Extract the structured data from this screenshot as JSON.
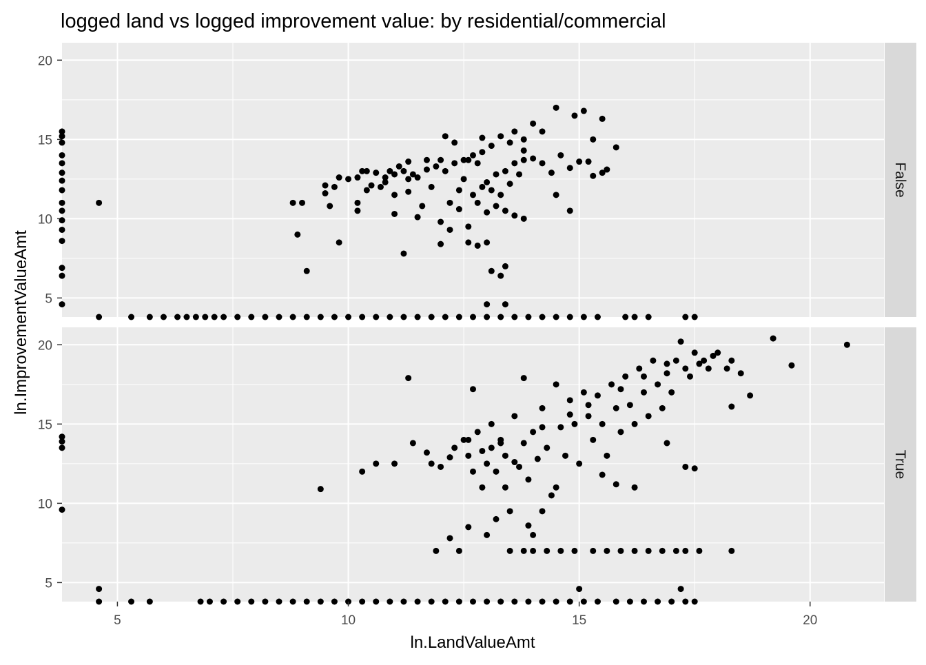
{
  "chart_data": {
    "type": "scatter",
    "title": "logged land vs logged improvement value: by residential/commercial",
    "xlabel": "ln.LandValueAmt",
    "ylabel": "ln.ImprovementValueAmt",
    "xlim": [
      3.8,
      21.6
    ],
    "ylim": [
      3.8,
      21.1
    ],
    "x_ticks": [
      5,
      10,
      15,
      20
    ],
    "y_ticks": [
      5,
      10,
      15,
      20
    ],
    "grid": true,
    "facet_by": "row",
    "point_color": "#000000",
    "panel_background": "#EBEBEB",
    "strip_background": "#D9D9D9",
    "panels": [
      {
        "strip_label": "False",
        "points": [
          [
            4.6,
            11.0
          ],
          [
            8.8,
            11.0
          ],
          [
            9.0,
            11.0
          ],
          [
            8.9,
            9.0
          ],
          [
            9.1,
            6.7
          ],
          [
            9.8,
            8.5
          ],
          [
            9.6,
            10.8
          ],
          [
            9.5,
            12.1
          ],
          [
            9.5,
            11.6
          ],
          [
            9.7,
            12.0
          ],
          [
            9.8,
            12.6
          ],
          [
            10.0,
            12.5
          ],
          [
            10.2,
            12.6
          ],
          [
            10.4,
            11.8
          ],
          [
            10.2,
            11.0
          ],
          [
            10.5,
            12.1
          ],
          [
            10.6,
            12.9
          ],
          [
            10.8,
            12.6
          ],
          [
            10.9,
            13.0
          ],
          [
            11.0,
            12.8
          ],
          [
            11.2,
            13.0
          ],
          [
            11.3,
            11.7
          ],
          [
            11.5,
            12.6
          ],
          [
            11.7,
            13.1
          ],
          [
            11.9,
            13.3
          ],
          [
            12.1,
            13.0
          ],
          [
            12.3,
            13.5
          ],
          [
            12.5,
            13.7
          ],
          [
            12.7,
            14.0
          ],
          [
            12.9,
            14.2
          ],
          [
            13.1,
            14.6
          ],
          [
            13.3,
            15.2
          ],
          [
            13.6,
            15.5
          ],
          [
            13.8,
            15.0
          ],
          [
            14.0,
            16.0
          ],
          [
            11.1,
            13.3
          ],
          [
            10.3,
            13.0
          ],
          [
            10.7,
            12.0
          ],
          [
            11.0,
            11.5
          ],
          [
            11.6,
            10.8
          ],
          [
            11.0,
            10.3
          ],
          [
            10.2,
            10.5
          ],
          [
            12.8,
            11.0
          ],
          [
            12.5,
            12.5
          ],
          [
            13.0,
            12.3
          ],
          [
            13.2,
            12.8
          ],
          [
            13.4,
            13.0
          ],
          [
            13.6,
            13.5
          ],
          [
            13.8,
            13.7
          ],
          [
            14.0,
            13.8
          ],
          [
            13.1,
            11.8
          ],
          [
            13.3,
            11.5
          ],
          [
            13.5,
            12.2
          ],
          [
            13.7,
            12.8
          ],
          [
            12.9,
            12.0
          ],
          [
            13.2,
            10.8
          ],
          [
            13.4,
            10.5
          ],
          [
            13.6,
            10.2
          ],
          [
            13.8,
            10.0
          ],
          [
            13.0,
            10.4
          ],
          [
            12.7,
            11.5
          ],
          [
            12.4,
            11.8
          ],
          [
            12.2,
            11.0
          ],
          [
            14.2,
            13.5
          ],
          [
            14.4,
            12.9
          ],
          [
            14.5,
            11.5
          ],
          [
            14.6,
            14.0
          ],
          [
            14.8,
            13.2
          ],
          [
            14.8,
            10.5
          ],
          [
            15.0,
            13.6
          ],
          [
            15.2,
            13.6
          ],
          [
            15.3,
            12.7
          ],
          [
            15.5,
            12.9
          ],
          [
            15.6,
            13.1
          ],
          [
            15.8,
            14.5
          ],
          [
            15.3,
            15.0
          ],
          [
            15.5,
            16.3
          ],
          [
            15.1,
            16.8
          ],
          [
            14.9,
            16.5
          ],
          [
            14.5,
            17.0
          ],
          [
            14.2,
            15.5
          ],
          [
            12.6,
            9.5
          ],
          [
            12.8,
            8.3
          ],
          [
            13.0,
            8.5
          ],
          [
            13.1,
            6.7
          ],
          [
            13.3,
            6.4
          ],
          [
            13.4,
            7.0
          ],
          [
            13.4,
            4.6
          ],
          [
            13.0,
            4.6
          ],
          [
            11.2,
            7.8
          ],
          [
            11.5,
            10.1
          ],
          [
            12.0,
            9.8
          ],
          [
            12.0,
            8.4
          ],
          [
            12.4,
            10.6
          ],
          [
            12.6,
            8.5
          ],
          [
            12.2,
            9.3
          ],
          [
            11.8,
            12.0
          ],
          [
            11.4,
            12.8
          ],
          [
            12.6,
            13.7
          ],
          [
            12.0,
            13.7
          ],
          [
            11.7,
            13.7
          ],
          [
            11.3,
            13.6
          ],
          [
            10.4,
            13.0
          ],
          [
            10.8,
            12.3
          ],
          [
            11.3,
            12.5
          ],
          [
            12.8,
            13.5
          ],
          [
            13.5,
            14.8
          ],
          [
            13.8,
            14.3
          ],
          [
            12.9,
            15.1
          ],
          [
            12.3,
            14.8
          ],
          [
            12.1,
            15.2
          ]
        ],
        "rug_x": [
          4.6,
          5.3,
          5.7,
          6.0,
          6.3,
          6.5,
          6.7,
          6.9,
          7.1,
          7.3,
          7.6,
          7.9,
          8.2,
          8.5,
          8.8,
          9.1,
          9.4,
          9.7,
          10.0,
          10.3,
          10.6,
          10.9,
          11.2,
          11.5,
          11.8,
          12.1,
          12.4,
          12.7,
          13.0,
          13.3,
          13.6,
          13.9,
          14.2,
          14.5,
          14.8,
          15.1,
          15.4,
          16.0,
          16.2,
          16.5,
          17.3,
          17.5
        ],
        "rug_y": [
          15.5,
          15.2,
          14.8,
          14.0,
          13.5,
          12.9,
          12.4,
          11.8,
          11.0,
          10.5,
          9.9,
          9.3,
          8.6,
          6.9,
          6.4,
          4.6
        ]
      },
      {
        "strip_label": "True",
        "points": [
          [
            4.6,
            4.6
          ],
          [
            9.4,
            10.9
          ],
          [
            10.3,
            12.0
          ],
          [
            10.6,
            12.5
          ],
          [
            11.0,
            12.5
          ],
          [
            11.3,
            17.9
          ],
          [
            11.4,
            13.8
          ],
          [
            11.7,
            13.2
          ],
          [
            11.8,
            12.5
          ],
          [
            11.9,
            7.0
          ],
          [
            12.0,
            12.3
          ],
          [
            12.2,
            7.8
          ],
          [
            12.3,
            13.5
          ],
          [
            12.4,
            7.0
          ],
          [
            12.5,
            14.0
          ],
          [
            12.6,
            13.0
          ],
          [
            12.6,
            8.5
          ],
          [
            12.7,
            12.0
          ],
          [
            12.7,
            17.2
          ],
          [
            12.8,
            14.5
          ],
          [
            12.9,
            13.3
          ],
          [
            13.0,
            12.5
          ],
          [
            13.0,
            8.0
          ],
          [
            13.1,
            15.0
          ],
          [
            13.2,
            12.0
          ],
          [
            13.2,
            9.0
          ],
          [
            13.3,
            14.0
          ],
          [
            13.4,
            13.0
          ],
          [
            13.4,
            11.0
          ],
          [
            13.5,
            9.5
          ],
          [
            13.6,
            15.5
          ],
          [
            13.7,
            12.3
          ],
          [
            13.8,
            13.8
          ],
          [
            13.9,
            11.5
          ],
          [
            13.8,
            17.9
          ],
          [
            14.0,
            14.5
          ],
          [
            14.1,
            12.8
          ],
          [
            14.2,
            16.0
          ],
          [
            14.3,
            13.5
          ],
          [
            14.4,
            10.5
          ],
          [
            14.5,
            17.5
          ],
          [
            14.6,
            14.8
          ],
          [
            14.7,
            13.0
          ],
          [
            14.8,
            16.5
          ],
          [
            14.9,
            15.0
          ],
          [
            15.0,
            12.5
          ],
          [
            15.1,
            17.0
          ],
          [
            15.2,
            15.5
          ],
          [
            15.3,
            14.0
          ],
          [
            15.4,
            16.8
          ],
          [
            15.5,
            15.0
          ],
          [
            15.6,
            13.0
          ],
          [
            15.7,
            17.5
          ],
          [
            15.8,
            16.0
          ],
          [
            15.9,
            14.5
          ],
          [
            16.0,
            18.0
          ],
          [
            16.1,
            16.2
          ],
          [
            16.2,
            15.0
          ],
          [
            16.3,
            18.5
          ],
          [
            16.4,
            17.0
          ],
          [
            16.5,
            15.5
          ],
          [
            16.6,
            19.0
          ],
          [
            16.7,
            17.5
          ],
          [
            16.8,
            16.0
          ],
          [
            16.9,
            18.2
          ],
          [
            17.0,
            17.0
          ],
          [
            17.1,
            19.0
          ],
          [
            17.2,
            20.2
          ],
          [
            17.3,
            18.5
          ],
          [
            17.4,
            18.0
          ],
          [
            17.5,
            19.5
          ],
          [
            17.6,
            18.8
          ],
          [
            17.7,
            19.0
          ],
          [
            17.8,
            18.5
          ],
          [
            17.9,
            19.3
          ],
          [
            18.0,
            19.5
          ],
          [
            18.2,
            18.5
          ],
          [
            18.3,
            19.0
          ],
          [
            18.5,
            18.2
          ],
          [
            18.7,
            16.8
          ],
          [
            18.3,
            16.1
          ],
          [
            19.2,
            20.4
          ],
          [
            19.6,
            18.7
          ],
          [
            20.8,
            20.0
          ],
          [
            17.3,
            12.3
          ],
          [
            17.5,
            12.2
          ],
          [
            16.9,
            13.8
          ],
          [
            15.8,
            11.2
          ],
          [
            14.5,
            11.0
          ],
          [
            15.5,
            11.8
          ],
          [
            16.2,
            11.0
          ],
          [
            13.5,
            7.0
          ],
          [
            13.8,
            7.0
          ],
          [
            14.0,
            7.0
          ],
          [
            14.3,
            7.0
          ],
          [
            14.6,
            7.0
          ],
          [
            14.9,
            7.0
          ],
          [
            15.3,
            7.0
          ],
          [
            15.6,
            7.0
          ],
          [
            15.9,
            7.0
          ],
          [
            16.2,
            7.0
          ],
          [
            16.5,
            7.0
          ],
          [
            16.8,
            7.0
          ],
          [
            17.1,
            7.0
          ],
          [
            17.3,
            7.0
          ],
          [
            17.6,
            7.0
          ],
          [
            18.3,
            7.0
          ],
          [
            15.0,
            4.6
          ],
          [
            17.2,
            4.6
          ],
          [
            14.0,
            8.0
          ],
          [
            14.2,
            9.5
          ],
          [
            13.9,
            8.6
          ],
          [
            12.9,
            11.0
          ],
          [
            13.6,
            12.6
          ],
          [
            13.3,
            13.8
          ],
          [
            14.2,
            14.8
          ],
          [
            14.8,
            15.6
          ],
          [
            15.2,
            16.2
          ],
          [
            15.9,
            17.2
          ],
          [
            16.4,
            18.0
          ],
          [
            16.9,
            18.8
          ],
          [
            12.2,
            12.9
          ],
          [
            12.6,
            14.0
          ],
          [
            13.1,
            13.5
          ]
        ],
        "rug_x": [
          4.6,
          5.3,
          5.7,
          6.8,
          7.0,
          7.3,
          7.6,
          7.9,
          8.2,
          8.5,
          8.8,
          9.1,
          9.4,
          9.7,
          10.0,
          10.3,
          10.6,
          10.9,
          11.2,
          11.5,
          11.8,
          12.1,
          12.4,
          12.7,
          13.0,
          13.3,
          13.6,
          13.9,
          14.2,
          14.5,
          14.8,
          15.1,
          15.4,
          15.8,
          16.1,
          16.4,
          16.7,
          17.0,
          17.3,
          17.5
        ],
        "rug_y": [
          14.2,
          13.9,
          13.5,
          9.6
        ]
      }
    ]
  }
}
